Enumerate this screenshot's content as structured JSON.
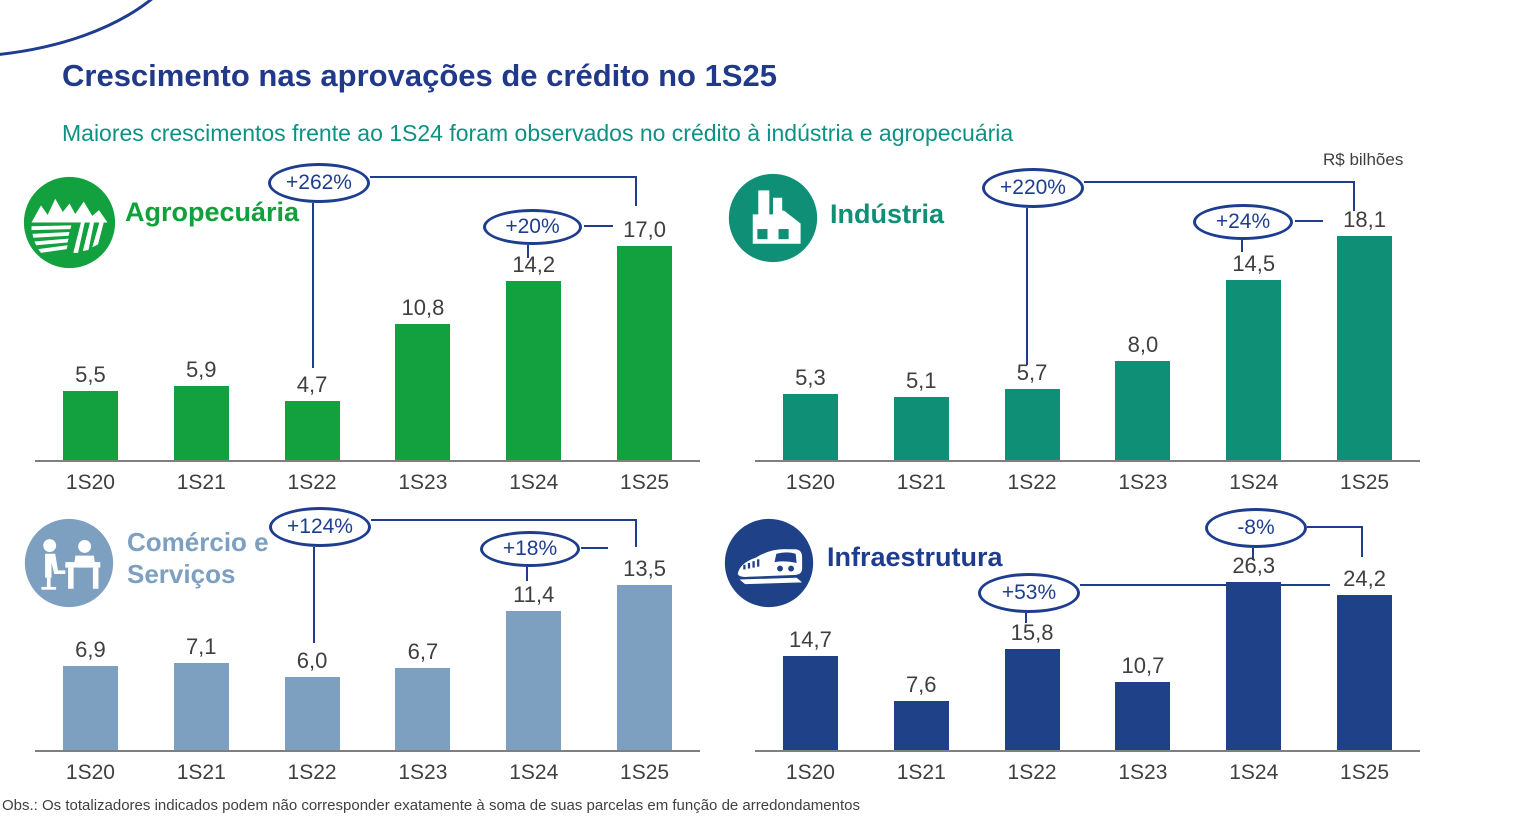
{
  "page": {
    "title": "Crescimento nas aprovações de crédito no 1S25",
    "subtitle": "Maiores crescimentos frente ao 1S24 foram observados no crédito à indústria e agropecuária",
    "unit_label": "R$ bilhões",
    "footnote": "Obs.: Os totalizadores indicados podem não corresponder exatamente à soma de suas parcelas em função de arredondamentos"
  },
  "colors": {
    "title_blue": "#21398b",
    "subtitle_teal": "#0d9184",
    "annotation_navy": "#1e3d8f",
    "agro_green": "#12a13e",
    "industria_teal": "#0e8f76",
    "comercio_blue": "#7da0c0",
    "infra_navy": "#1f4187",
    "label_gray": "#3f3f3e"
  },
  "chart_data": [
    {
      "type": "bar",
      "sector": "Agropecuária",
      "icon": "farm-field-icon",
      "color": "#12a13e",
      "unit": "R$ bilhões",
      "categories": [
        "1S20",
        "1S21",
        "1S22",
        "1S23",
        "1S24",
        "1S25"
      ],
      "values": [
        5.5,
        5.9,
        4.7,
        10.8,
        14.2,
        17.0
      ],
      "value_labels": [
        "5,5",
        "5,9",
        "4,7",
        "10,8",
        "14,2",
        "17,0"
      ],
      "ylim": [
        0,
        18
      ],
      "grid": false,
      "legend": false,
      "annotations": [
        {
          "label": "+262%",
          "from": "1S22",
          "to": "1S25"
        },
        {
          "label": "+20%",
          "from": "1S24",
          "to": "1S25"
        }
      ]
    },
    {
      "type": "bar",
      "sector": "Indústria",
      "icon": "factory-icon",
      "color": "#0e8f76",
      "unit": "R$ bilhões",
      "categories": [
        "1S20",
        "1S21",
        "1S22",
        "1S23",
        "1S24",
        "1S25"
      ],
      "values": [
        5.3,
        5.1,
        5.7,
        8.0,
        14.5,
        18.1
      ],
      "value_labels": [
        "5,3",
        "5,1",
        "5,7",
        "8,0",
        "14,5",
        "18,1"
      ],
      "ylim": [
        0,
        19
      ],
      "grid": false,
      "legend": false,
      "annotations": [
        {
          "label": "+220%",
          "from": "1S22",
          "to": "1S25"
        },
        {
          "label": "+24%",
          "from": "1S24",
          "to": "1S25"
        }
      ]
    },
    {
      "type": "bar",
      "sector": "Comércio e Serviços",
      "sector_line1": "Comércio e",
      "sector_line2": "Serviços",
      "icon": "commerce-services-icon",
      "color": "#7da0c0",
      "unit": "R$ bilhões",
      "categories": [
        "1S20",
        "1S21",
        "1S22",
        "1S23",
        "1S24",
        "1S25"
      ],
      "values": [
        6.9,
        7.1,
        6.0,
        6.7,
        11.4,
        13.5
      ],
      "value_labels": [
        "6,9",
        "7,1",
        "6,0",
        "6,7",
        "11,4",
        "13,5"
      ],
      "ylim": [
        0,
        15
      ],
      "grid": false,
      "legend": false,
      "annotations": [
        {
          "label": "+124%",
          "from": "1S22",
          "to": "1S25"
        },
        {
          "label": "+18%",
          "from": "1S24",
          "to": "1S25"
        }
      ]
    },
    {
      "type": "bar",
      "sector": "Infraestrutura",
      "icon": "train-icon",
      "color": "#1f4187",
      "unit": "R$ bilhões",
      "categories": [
        "1S20",
        "1S21",
        "1S22",
        "1S23",
        "1S24",
        "1S25"
      ],
      "values": [
        14.7,
        7.6,
        15.8,
        10.7,
        26.3,
        24.2
      ],
      "value_labels": [
        "14,7",
        "7,6",
        "15,8",
        "10,7",
        "26,3",
        "24,2"
      ],
      "ylim": [
        0,
        28
      ],
      "grid": false,
      "legend": false,
      "annotations": [
        {
          "label": "-8%",
          "from": "1S24",
          "to": "1S25"
        },
        {
          "label": "+53%",
          "from": "1S22",
          "to": "1S25"
        }
      ]
    }
  ]
}
